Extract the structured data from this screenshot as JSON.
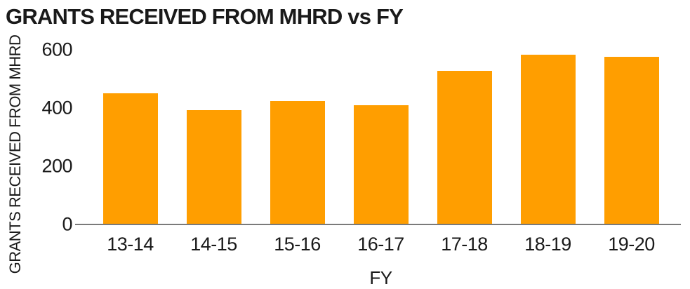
{
  "chart_data": {
    "type": "bar",
    "title": "GRANTS RECEIVED FROM MHRD vs FY",
    "xlabel": "FY",
    "ylabel": "GRANTS RECEIVED FROM MHRD",
    "categories": [
      "13-14",
      "14-15",
      "15-16",
      "16-17",
      "17-18",
      "18-19",
      "19-20"
    ],
    "values": [
      450,
      393,
      423,
      410,
      528,
      582,
      577
    ],
    "ylim": [
      0,
      600
    ],
    "yticks": [
      0,
      200,
      400,
      600
    ],
    "grid": "off",
    "legend": "none",
    "colors": {
      "bar": "#FF9E00",
      "axis_line": "#7a7a7a",
      "text": "#1a1a1a",
      "background": "#ffffff"
    }
  }
}
